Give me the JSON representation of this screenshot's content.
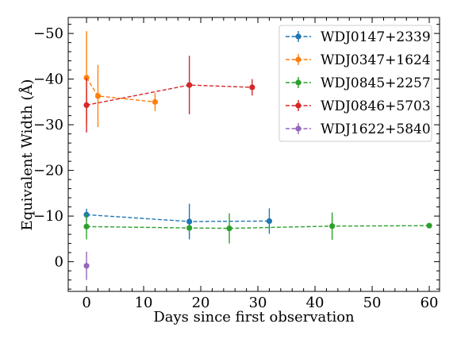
{
  "chart_data": {
    "type": "scatter",
    "title": "",
    "xlabel": "Days since first observation",
    "ylabel": "Equivalent Width (Å)",
    "xlim": [
      -3.2,
      61.8
    ],
    "ylim": [
      6.5,
      -53.5
    ],
    "y_inverted": true,
    "xticks": [
      0,
      10,
      20,
      30,
      40,
      50,
      60
    ],
    "yticks": [
      0,
      -10,
      -20,
      -30,
      -40,
      -50
    ],
    "xtick_labels": [
      "0",
      "10",
      "20",
      "30",
      "40",
      "50",
      "60"
    ],
    "ytick_labels": [
      "0",
      "−10",
      "−20",
      "−30",
      "−40",
      "−50"
    ],
    "grid": false,
    "legend_position": "top-right",
    "series": [
      {
        "name": "WDJ0147+2339",
        "color": "#1f77b4",
        "x": [
          0,
          18,
          32
        ],
        "y": [
          -10.3,
          -8.8,
          -8.9
        ],
        "err": [
          1.3,
          3.9,
          2.8
        ]
      },
      {
        "name": "WDJ0347+1624",
        "color": "#ff7f0e",
        "x": [
          0,
          2,
          12
        ],
        "y": [
          -40.3,
          -36.3,
          -35.0
        ],
        "err": [
          10.2,
          6.8,
          2.0
        ]
      },
      {
        "name": "WDJ0845+2257",
        "color": "#2ca02c",
        "x": [
          0,
          18,
          25,
          43,
          60
        ],
        "y": [
          -7.7,
          -7.4,
          -7.3,
          -7.8,
          -7.9
        ],
        "err": [
          2.8,
          0,
          3.3,
          3.0,
          0
        ]
      },
      {
        "name": "WDJ0846+5703",
        "color": "#d62728",
        "x": [
          0,
          18,
          29
        ],
        "y": [
          -34.3,
          -38.7,
          -38.2
        ],
        "err": [
          6.0,
          6.4,
          1.8
        ]
      },
      {
        "name": "WDJ1622+5840",
        "color": "#9467bd",
        "x": [
          0
        ],
        "y": [
          0.9
        ],
        "err": [
          3.1
        ]
      }
    ]
  }
}
